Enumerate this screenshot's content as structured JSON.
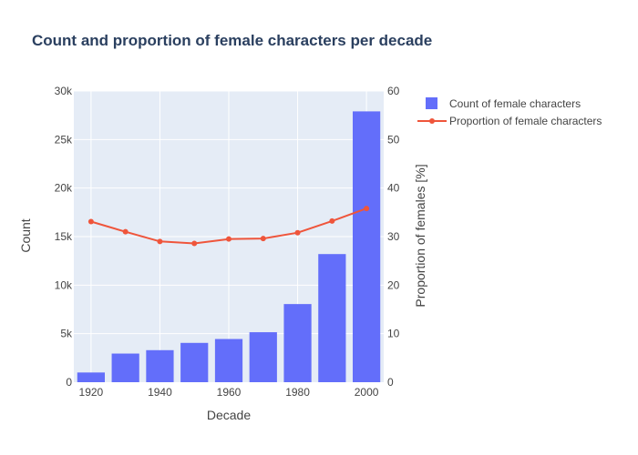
{
  "chart_data": {
    "type": "bar",
    "title": "Count and proportion of female characters per decade",
    "xlabel": "Decade",
    "ylabel": "Count",
    "y2label": "Proportion of females [%]",
    "x": [
      1920,
      1930,
      1940,
      1950,
      1960,
      1970,
      1980,
      1990,
      2000
    ],
    "xticks": [
      1920,
      1940,
      1960,
      1980,
      2000
    ],
    "xtick_labels": [
      "1920",
      "1940",
      "1960",
      "1980",
      "2000"
    ],
    "ylim": [
      0,
      30000
    ],
    "yticks": [
      0,
      5000,
      10000,
      15000,
      20000,
      25000,
      30000
    ],
    "ytick_labels": [
      "0",
      "5k",
      "10k",
      "15k",
      "20k",
      "25k",
      "30k"
    ],
    "y2lim": [
      0,
      60
    ],
    "y2ticks": [
      0,
      10,
      20,
      30,
      40,
      50,
      60
    ],
    "y2tick_labels": [
      "0",
      "10",
      "20",
      "30",
      "40",
      "50",
      "60"
    ],
    "grid": true,
    "legend_position": "top-right",
    "series": [
      {
        "name": "Count of female characters",
        "type": "bar",
        "axis": "left",
        "color": "#636efa",
        "values": [
          1000,
          2950,
          3300,
          4050,
          4450,
          5150,
          8050,
          13200,
          27900
        ]
      },
      {
        "name": "Proportion of female characters",
        "type": "line",
        "axis": "right",
        "color": "#ef553b",
        "values": [
          33.1,
          31.0,
          29.0,
          28.6,
          29.5,
          29.6,
          30.8,
          33.2,
          35.8
        ]
      }
    ]
  }
}
